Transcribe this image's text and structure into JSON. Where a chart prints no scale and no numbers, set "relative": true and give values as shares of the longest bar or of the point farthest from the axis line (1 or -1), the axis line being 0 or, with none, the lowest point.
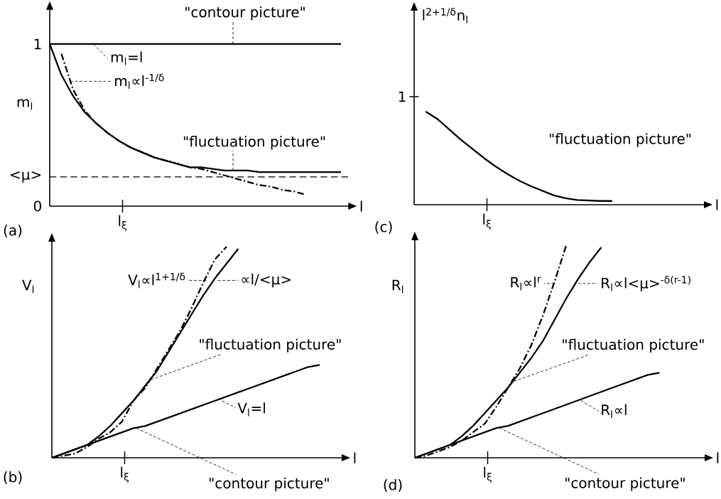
{
  "chart_data": [
    {
      "type": "line",
      "xlabel": "l",
      "ylabel": "m$_{l}$",
      "ylim": [
        0,
        1.22
      ],
      "yticks": [
        {
          "value": 0,
          "label": "0"
        },
        {
          "value": 1,
          "label": "1"
        },
        {
          "value": 0.18,
          "label": "<μ>"
        }
      ],
      "categories": [
        null,
        null,
        null,
        null,
        null,
        null,
        null,
        null,
        null,
        null,
        null,
        null,
        null,
        null,
        null,
        null,
        null,
        null,
        null,
        null,
        null,
        null,
        null,
        null,
        null,
        null
      ],
      "series": [
        {
          "type": "line",
          "color": "#000000",
          "line_style": "solid",
          "values": [
            1,
            1,
            1,
            1,
            1,
            1,
            1,
            1,
            1,
            1,
            1,
            1,
            1,
            1,
            1,
            1,
            1,
            1,
            1,
            1,
            1,
            1,
            1,
            1,
            1,
            1
          ]
        },
        {
          "type": "line",
          "color": "#000000",
          "line_style": "solid",
          "values": [
            1,
            0.81,
            0.68,
            0.58,
            0.51,
            0.45,
            0.4,
            0.36,
            0.33,
            0.3,
            0.28,
            0.26,
            0.24,
            0.24,
            0.23,
            0.22,
            0.22,
            0.22,
            0.21,
            0.21,
            0.21,
            0.21,
            0.21,
            0.21,
            0.21,
            0.21
          ]
        },
        {
          "type": "line",
          "color": "#000000",
          "line_style": "dashed",
          "values": [
            null,
            0.94,
            0.72,
            0.59,
            0.51,
            0.45,
            0.4,
            0.36,
            0.33,
            0.3,
            0.28,
            0.26,
            0.24,
            0.23,
            0.21,
            0.19,
            0.17,
            0.15,
            0.13,
            0.12,
            0.1,
            0.09,
            0.07,
            null,
            null,
            null
          ]
        }
      ],
      "ref_lines": [
        {
          "axis": "y",
          "value": 0.18,
          "color": "#000000",
          "line_style": "dashed"
        }
      ],
      "annotations": [
        "\"contour picture\"",
        "m$_{l}$=l",
        "m$_{l}$∝l$^{-1/δ}$",
        "\"fluctuation picture\"",
        "(a)",
        "l$_{ξ}$"
      ]
    },
    {
      "type": "line",
      "relative": true,
      "xlabel": "l",
      "ylabel": "l$^{2+1/δ}$n$_{l}$",
      "categories": [
        null,
        null,
        null,
        null,
        null,
        null,
        null,
        null,
        null,
        null,
        null,
        null,
        null,
        null,
        null,
        null,
        null,
        null,
        null,
        null,
        null,
        null,
        null,
        null,
        null,
        null
      ],
      "series": [
        {
          "type": "line",
          "color": "#000000",
          "line_style": "solid",
          "values": [
            null,
            1,
            0.92,
            0.81,
            0.7,
            0.6,
            0.5,
            0.41,
            0.33,
            0.26,
            0.2,
            0.15,
            0.1,
            0.07,
            0.05,
            0.045,
            0.04,
            0.04,
            null,
            null,
            null,
            null,
            null,
            null,
            null,
            null
          ]
        }
      ],
      "annotations": [
        "\"fluctuation picture\"",
        "1",
        "(c)",
        "l$_{ξ}$"
      ]
    },
    {
      "type": "line",
      "relative": true,
      "xlabel": "l",
      "ylabel": "V$_{l}$",
      "categories": [
        null,
        null,
        null,
        null,
        null,
        null,
        null,
        null,
        null,
        null,
        null,
        null,
        null,
        null,
        null,
        null,
        null,
        null,
        null,
        null,
        null,
        null,
        null,
        null,
        null,
        null
      ],
      "series": [
        {
          "type": "line",
          "color": "#000000",
          "line_style": "solid",
          "values": [
            0,
            0.02,
            0.04,
            0.06,
            0.1,
            0.15,
            0.21,
            0.27,
            0.34,
            0.41,
            0.5,
            0.59,
            0.68,
            0.77,
            0.85,
            0.92,
            0.99,
            null,
            null,
            null,
            null,
            null,
            null,
            null,
            null,
            null
          ]
        },
        {
          "type": "line",
          "color": "#000000",
          "line_style": "dashed",
          "values": [
            0,
            0.01,
            0.02,
            0.05,
            0.09,
            0.12,
            0.17,
            0.27,
            0.33,
            0.42,
            0.51,
            0.6,
            0.71,
            0.83,
            0.94,
            1.0,
            null,
            null,
            null,
            null,
            null,
            null,
            null,
            null,
            null,
            null
          ]
        },
        {
          "type": "line",
          "color": "#000000",
          "line_style": "solid",
          "values": [
            0,
            0.02,
            0.04,
            0.06,
            0.08,
            0.1,
            0.12,
            0.14,
            0.15,
            0.17,
            0.19,
            0.21,
            0.23,
            0.25,
            0.27,
            0.29,
            0.31,
            0.33,
            0.35,
            0.37,
            0.39,
            0.41,
            0.43,
            0.44,
            null,
            null
          ]
        }
      ],
      "annotations": [
        "V$_{l}$∝l$^{1+1/δ}$",
        "∝l/<μ>",
        "\"fluctuation picture\"",
        "V$_{l}$=l",
        "\"contour picture\"",
        "(b)",
        "l$_{ξ}$"
      ]
    },
    {
      "type": "line",
      "relative": true,
      "xlabel": "l",
      "ylabel": "R$_{l}$",
      "categories": [
        null,
        null,
        null,
        null,
        null,
        null,
        null,
        null,
        null,
        null,
        null,
        null,
        null,
        null,
        null,
        null,
        null,
        null,
        null,
        null,
        null,
        null,
        null,
        null,
        null,
        null
      ],
      "series": [
        {
          "type": "line",
          "color": "#000000",
          "line_style": "solid",
          "values": [
            0,
            0.02,
            0.04,
            0.06,
            0.1,
            0.15,
            0.21,
            0.27,
            0.33,
            0.4,
            0.47,
            0.55,
            0.65,
            0.75,
            0.84,
            0.92,
            0.99,
            null,
            null,
            null,
            null,
            null,
            null,
            null,
            null,
            null
          ]
        },
        {
          "type": "line",
          "color": "#000000",
          "line_style": "dashed",
          "values": [
            0,
            0.01,
            0.03,
            0.05,
            0.08,
            0.12,
            0.16,
            0.24,
            0.33,
            0.42,
            0.53,
            0.67,
            0.83,
            1.0,
            null,
            null,
            null,
            null,
            null,
            null,
            null,
            null,
            null,
            null,
            null,
            null
          ]
        },
        {
          "type": "line",
          "color": "#000000",
          "line_style": "solid",
          "values": [
            0,
            0.02,
            0.04,
            0.06,
            0.08,
            0.1,
            0.12,
            0.14,
            0.15,
            0.17,
            0.19,
            0.21,
            0.23,
            0.25,
            0.27,
            0.29,
            0.31,
            0.33,
            0.35,
            0.37,
            0.39,
            0.4,
            null,
            null,
            null,
            null
          ]
        }
      ],
      "annotations": [
        "R$_{l}$∝l$^{r}$",
        "R$_{l}$∝l<μ>$^{-δ(r-1)}$",
        "\"fluctuation picture\"",
        "R$_{l}$∝l",
        "\"contour picture\"",
        "(d)",
        "l$_{ξ}$"
      ]
    }
  ]
}
